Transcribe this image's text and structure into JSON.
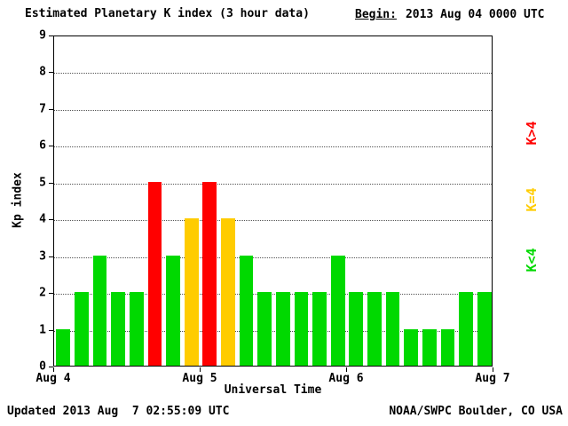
{
  "title": "Estimated Planetary K index (3 hour data)",
  "begin_label": "Begin:",
  "begin_value": "2013 Aug 04 0000 UTC",
  "footer": {
    "updated": "Updated 2013 Aug  7 02:55:09 UTC",
    "source": "NOAA/SWPC Boulder, CO USA"
  },
  "chart_data": {
    "type": "bar",
    "title": "Estimated Planetary K index (3 hour data)",
    "xlabel": "Universal Time",
    "ylabel": "Kp index",
    "ylim": [
      0,
      9
    ],
    "yticks": [
      0,
      1,
      2,
      3,
      4,
      5,
      6,
      7,
      8,
      9
    ],
    "xticks": [
      "Aug 4",
      "Aug 5",
      "Aug 6",
      "Aug 7"
    ],
    "bars_per_day": 8,
    "interval_hours": 3,
    "begin": "2013 Aug 04 0000 UTC",
    "values": [
      1,
      2,
      3,
      2,
      2,
      5,
      3,
      4,
      5,
      4,
      3,
      2,
      2,
      2,
      2,
      3,
      2,
      2,
      2,
      1,
      1,
      1,
      2,
      2
    ],
    "color_rule": "green K<4, yellow K=4, red K>4",
    "colors": {
      "low": "#00d900",
      "mid": "#ffcc00",
      "high": "#ff0000"
    },
    "legend": [
      {
        "label": "K>4",
        "color": "#ff0000"
      },
      {
        "label": "K=4",
        "color": "#ffcc00"
      },
      {
        "label": "K<4",
        "color": "#00d900"
      }
    ],
    "grid": "horizontal dotted"
  }
}
